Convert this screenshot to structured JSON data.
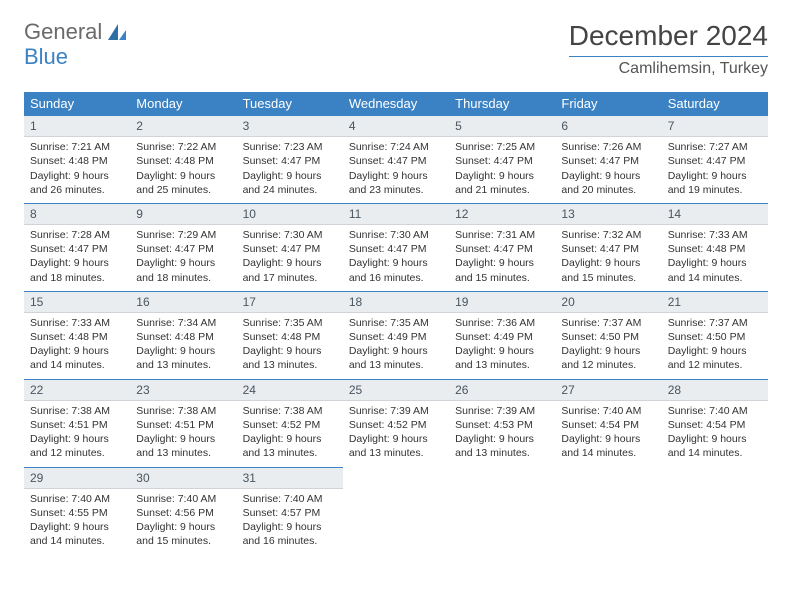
{
  "brand": {
    "line1": "General",
    "line2": "Blue"
  },
  "title": "December 2024",
  "location": "Camlihemsin, Turkey",
  "colors": {
    "header_bg": "#3b82c4",
    "header_text": "#ffffff",
    "daynum_bg": "#e9edf0",
    "accent_border": "#3b82c4",
    "body_text": "#333333",
    "page_bg": "#ffffff"
  },
  "days_of_week": [
    "Sunday",
    "Monday",
    "Tuesday",
    "Wednesday",
    "Thursday",
    "Friday",
    "Saturday"
  ],
  "weeks": [
    [
      {
        "n": "1",
        "sr": "Sunrise: 7:21 AM",
        "ss": "Sunset: 4:48 PM",
        "d1": "Daylight: 9 hours",
        "d2": "and 26 minutes."
      },
      {
        "n": "2",
        "sr": "Sunrise: 7:22 AM",
        "ss": "Sunset: 4:48 PM",
        "d1": "Daylight: 9 hours",
        "d2": "and 25 minutes."
      },
      {
        "n": "3",
        "sr": "Sunrise: 7:23 AM",
        "ss": "Sunset: 4:47 PM",
        "d1": "Daylight: 9 hours",
        "d2": "and 24 minutes."
      },
      {
        "n": "4",
        "sr": "Sunrise: 7:24 AM",
        "ss": "Sunset: 4:47 PM",
        "d1": "Daylight: 9 hours",
        "d2": "and 23 minutes."
      },
      {
        "n": "5",
        "sr": "Sunrise: 7:25 AM",
        "ss": "Sunset: 4:47 PM",
        "d1": "Daylight: 9 hours",
        "d2": "and 21 minutes."
      },
      {
        "n": "6",
        "sr": "Sunrise: 7:26 AM",
        "ss": "Sunset: 4:47 PM",
        "d1": "Daylight: 9 hours",
        "d2": "and 20 minutes."
      },
      {
        "n": "7",
        "sr": "Sunrise: 7:27 AM",
        "ss": "Sunset: 4:47 PM",
        "d1": "Daylight: 9 hours",
        "d2": "and 19 minutes."
      }
    ],
    [
      {
        "n": "8",
        "sr": "Sunrise: 7:28 AM",
        "ss": "Sunset: 4:47 PM",
        "d1": "Daylight: 9 hours",
        "d2": "and 18 minutes."
      },
      {
        "n": "9",
        "sr": "Sunrise: 7:29 AM",
        "ss": "Sunset: 4:47 PM",
        "d1": "Daylight: 9 hours",
        "d2": "and 18 minutes."
      },
      {
        "n": "10",
        "sr": "Sunrise: 7:30 AM",
        "ss": "Sunset: 4:47 PM",
        "d1": "Daylight: 9 hours",
        "d2": "and 17 minutes."
      },
      {
        "n": "11",
        "sr": "Sunrise: 7:30 AM",
        "ss": "Sunset: 4:47 PM",
        "d1": "Daylight: 9 hours",
        "d2": "and 16 minutes."
      },
      {
        "n": "12",
        "sr": "Sunrise: 7:31 AM",
        "ss": "Sunset: 4:47 PM",
        "d1": "Daylight: 9 hours",
        "d2": "and 15 minutes."
      },
      {
        "n": "13",
        "sr": "Sunrise: 7:32 AM",
        "ss": "Sunset: 4:47 PM",
        "d1": "Daylight: 9 hours",
        "d2": "and 15 minutes."
      },
      {
        "n": "14",
        "sr": "Sunrise: 7:33 AM",
        "ss": "Sunset: 4:48 PM",
        "d1": "Daylight: 9 hours",
        "d2": "and 14 minutes."
      }
    ],
    [
      {
        "n": "15",
        "sr": "Sunrise: 7:33 AM",
        "ss": "Sunset: 4:48 PM",
        "d1": "Daylight: 9 hours",
        "d2": "and 14 minutes."
      },
      {
        "n": "16",
        "sr": "Sunrise: 7:34 AM",
        "ss": "Sunset: 4:48 PM",
        "d1": "Daylight: 9 hours",
        "d2": "and 13 minutes."
      },
      {
        "n": "17",
        "sr": "Sunrise: 7:35 AM",
        "ss": "Sunset: 4:48 PM",
        "d1": "Daylight: 9 hours",
        "d2": "and 13 minutes."
      },
      {
        "n": "18",
        "sr": "Sunrise: 7:35 AM",
        "ss": "Sunset: 4:49 PM",
        "d1": "Daylight: 9 hours",
        "d2": "and 13 minutes."
      },
      {
        "n": "19",
        "sr": "Sunrise: 7:36 AM",
        "ss": "Sunset: 4:49 PM",
        "d1": "Daylight: 9 hours",
        "d2": "and 13 minutes."
      },
      {
        "n": "20",
        "sr": "Sunrise: 7:37 AM",
        "ss": "Sunset: 4:50 PM",
        "d1": "Daylight: 9 hours",
        "d2": "and 12 minutes."
      },
      {
        "n": "21",
        "sr": "Sunrise: 7:37 AM",
        "ss": "Sunset: 4:50 PM",
        "d1": "Daylight: 9 hours",
        "d2": "and 12 minutes."
      }
    ],
    [
      {
        "n": "22",
        "sr": "Sunrise: 7:38 AM",
        "ss": "Sunset: 4:51 PM",
        "d1": "Daylight: 9 hours",
        "d2": "and 12 minutes."
      },
      {
        "n": "23",
        "sr": "Sunrise: 7:38 AM",
        "ss": "Sunset: 4:51 PM",
        "d1": "Daylight: 9 hours",
        "d2": "and 13 minutes."
      },
      {
        "n": "24",
        "sr": "Sunrise: 7:38 AM",
        "ss": "Sunset: 4:52 PM",
        "d1": "Daylight: 9 hours",
        "d2": "and 13 minutes."
      },
      {
        "n": "25",
        "sr": "Sunrise: 7:39 AM",
        "ss": "Sunset: 4:52 PM",
        "d1": "Daylight: 9 hours",
        "d2": "and 13 minutes."
      },
      {
        "n": "26",
        "sr": "Sunrise: 7:39 AM",
        "ss": "Sunset: 4:53 PM",
        "d1": "Daylight: 9 hours",
        "d2": "and 13 minutes."
      },
      {
        "n": "27",
        "sr": "Sunrise: 7:40 AM",
        "ss": "Sunset: 4:54 PM",
        "d1": "Daylight: 9 hours",
        "d2": "and 14 minutes."
      },
      {
        "n": "28",
        "sr": "Sunrise: 7:40 AM",
        "ss": "Sunset: 4:54 PM",
        "d1": "Daylight: 9 hours",
        "d2": "and 14 minutes."
      }
    ],
    [
      {
        "n": "29",
        "sr": "Sunrise: 7:40 AM",
        "ss": "Sunset: 4:55 PM",
        "d1": "Daylight: 9 hours",
        "d2": "and 14 minutes."
      },
      {
        "n": "30",
        "sr": "Sunrise: 7:40 AM",
        "ss": "Sunset: 4:56 PM",
        "d1": "Daylight: 9 hours",
        "d2": "and 15 minutes."
      },
      {
        "n": "31",
        "sr": "Sunrise: 7:40 AM",
        "ss": "Sunset: 4:57 PM",
        "d1": "Daylight: 9 hours",
        "d2": "and 16 minutes."
      },
      {
        "empty": true
      },
      {
        "empty": true
      },
      {
        "empty": true
      },
      {
        "empty": true
      }
    ]
  ]
}
